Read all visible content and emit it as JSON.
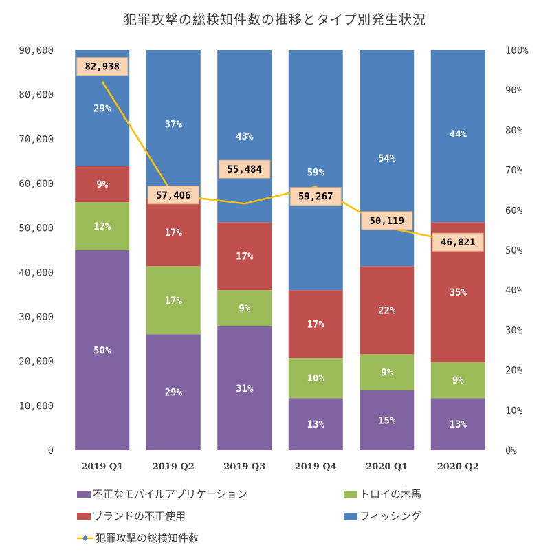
{
  "chart_data": {
    "type": "bar",
    "stacked": "percent",
    "title": "犯罪攻撃の総検知件数の推移とタイプ別発生状況",
    "categories": [
      "2019 Q1",
      "2019 Q2",
      "2019 Q3",
      "2019 Q4",
      "2020 Q1",
      "2020 Q2"
    ],
    "series": [
      {
        "name": "不正なモバイルアプリケーション",
        "color": "#8064A2",
        "values": [
          50,
          29,
          31,
          13,
          15,
          13
        ]
      },
      {
        "name": "トロイの木馬",
        "color": "#9BBB59",
        "values": [
          12,
          17,
          9,
          10,
          9,
          9
        ]
      },
      {
        "name": "ブランドの不正使用",
        "color": "#C0504D",
        "values": [
          9,
          17,
          17,
          17,
          22,
          35
        ]
      },
      {
        "name": "フィッシング",
        "color": "#4F81BD",
        "values": [
          29,
          37,
          43,
          59,
          54,
          44
        ]
      }
    ],
    "line_series": {
      "name": "犯罪攻撃の総検知件数",
      "color": "#FFC000",
      "marker_color": "#4F81BD",
      "values": [
        82938,
        57406,
        55484,
        59267,
        50119,
        46821
      ],
      "labels": [
        "82,938",
        "57,406",
        "55,484",
        "59,267",
        "50,119",
        "46,821"
      ]
    },
    "y_left": {
      "lim": [
        0,
        90000
      ],
      "ticks": [
        "0",
        "10,000",
        "20,000",
        "30,000",
        "40,000",
        "50,000",
        "60,000",
        "70,000",
        "80,000",
        "90,000"
      ]
    },
    "y_right": {
      "lim": [
        0,
        100
      ],
      "ticks": [
        "0%",
        "10%",
        "20%",
        "30%",
        "40%",
        "50%",
        "60%",
        "70%",
        "80%",
        "90%",
        "100%"
      ]
    },
    "grid": false,
    "legend_position": "bottom"
  }
}
